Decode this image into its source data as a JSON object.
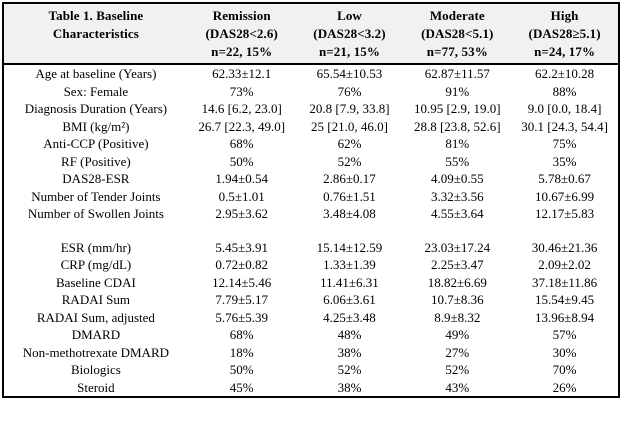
{
  "table": {
    "title_line1": "Table 1. Baseline",
    "title_line2": "Characteristics",
    "columns": [
      {
        "name": "Remission",
        "criteria": "(DAS28<2.6)",
        "n": "n=22, 15%"
      },
      {
        "name": "Low",
        "criteria": "(DAS28<3.2)",
        "n": "n=21, 15%"
      },
      {
        "name": "Moderate",
        "criteria": "(DAS28<5.1)",
        "n": "n=77, 53%"
      },
      {
        "name": "High",
        "criteria": "(DAS28≥5.1)",
        "n": "n=24, 17%"
      }
    ],
    "rows": [
      {
        "label": "Age at baseline (Years)",
        "values": [
          "62.33±12.1",
          "65.54±10.53",
          "62.87±11.57",
          "62.2±10.28"
        ]
      },
      {
        "label": "Sex: Female",
        "values": [
          "73%",
          "76%",
          "91%",
          "88%"
        ]
      },
      {
        "label": "Diagnosis Duration (Years)",
        "values": [
          "14.6 [6.2, 23.0]",
          "20.8 [7.9, 33.8]",
          "10.95 [2.9, 19.0]",
          "9.0 [0.0, 18.4]"
        ]
      },
      {
        "label": "BMI (kg/m²)",
        "values": [
          "26.7 [22.3, 49.0]",
          "25 [21.0, 46.0]",
          "28.8 [23.8, 52.6]",
          "30.1 [24.3, 54.4]"
        ]
      },
      {
        "label": "Anti-CCP (Positive)",
        "values": [
          "68%",
          "62%",
          "81%",
          "75%"
        ]
      },
      {
        "label": "RF (Positive)",
        "values": [
          "50%",
          "52%",
          "55%",
          "35%"
        ]
      },
      {
        "label": "DAS28-ESR",
        "values": [
          "1.94±0.54",
          "2.86±0.17",
          "4.09±0.55",
          "5.78±0.67"
        ]
      },
      {
        "label": "Number of Tender Joints",
        "values": [
          "0.5±1.01",
          "0.76±1.51",
          "3.32±3.56",
          "10.67±6.99"
        ]
      },
      {
        "label": "Number of Swollen Joints",
        "values": [
          "2.95±3.62",
          "3.48±4.08",
          "4.55±3.64",
          "12.17±5.83"
        ]
      },
      {
        "blank": true
      },
      {
        "label": "ESR (mm/hr)",
        "values": [
          "5.45±3.91",
          "15.14±12.59",
          "23.03±17.24",
          "30.46±21.36"
        ]
      },
      {
        "label": "CRP (mg/dL)",
        "values": [
          "0.72±0.82",
          "1.33±1.39",
          "2.25±3.47",
          "2.09±2.02"
        ]
      },
      {
        "label": "Baseline CDAI",
        "values": [
          "12.14±5.46",
          "11.41±6.31",
          "18.82±6.69",
          "37.18±11.86"
        ]
      },
      {
        "label": "RADAI Sum",
        "values": [
          "7.79±5.17",
          "6.06±3.61",
          "10.7±8.36",
          "15.54±9.45"
        ]
      },
      {
        "label": "RADAI Sum, adjusted",
        "values": [
          "5.76±5.39",
          "4.25±3.48",
          "8.9±8.32",
          "13.96±8.94"
        ]
      },
      {
        "label": "DMARD",
        "values": [
          "68%",
          "48%",
          "49%",
          "57%"
        ]
      },
      {
        "label": "Non-methotrexate DMARD",
        "values": [
          "18%",
          "38%",
          "27%",
          "30%"
        ]
      },
      {
        "label": "Biologics",
        "values": [
          "50%",
          "52%",
          "52%",
          "70%"
        ]
      },
      {
        "label": "Steroid",
        "values": [
          "45%",
          "38%",
          "43%",
          "26%"
        ]
      }
    ]
  },
  "colors": {
    "header_bg": "#f1f1f1",
    "border": "#000000",
    "text": "#000000"
  }
}
